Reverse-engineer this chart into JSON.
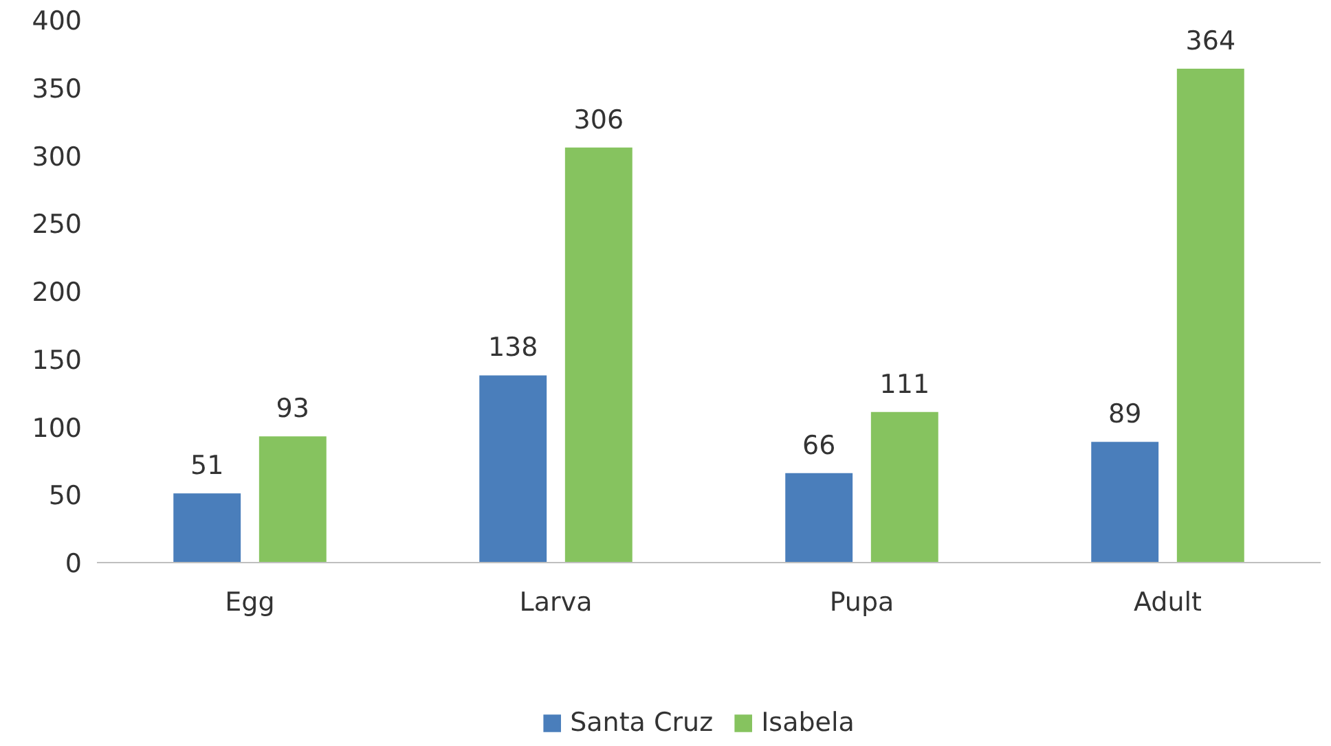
{
  "chart_data": {
    "type": "bar",
    "categories": [
      "Egg",
      "Larva",
      "Pupa",
      "Adult"
    ],
    "series": [
      {
        "name": "Santa Cruz",
        "color": "#4a7ebb",
        "values": [
          51,
          138,
          66,
          89
        ]
      },
      {
        "name": "Isabela",
        "color": "#86c35f",
        "values": [
          93,
          306,
          111,
          364
        ]
      }
    ],
    "ylim": [
      0,
      400
    ],
    "yticks": [
      0,
      50,
      100,
      150,
      200,
      250,
      300,
      350,
      400
    ],
    "grid": false,
    "legend": "bottom",
    "data_labels": true
  }
}
